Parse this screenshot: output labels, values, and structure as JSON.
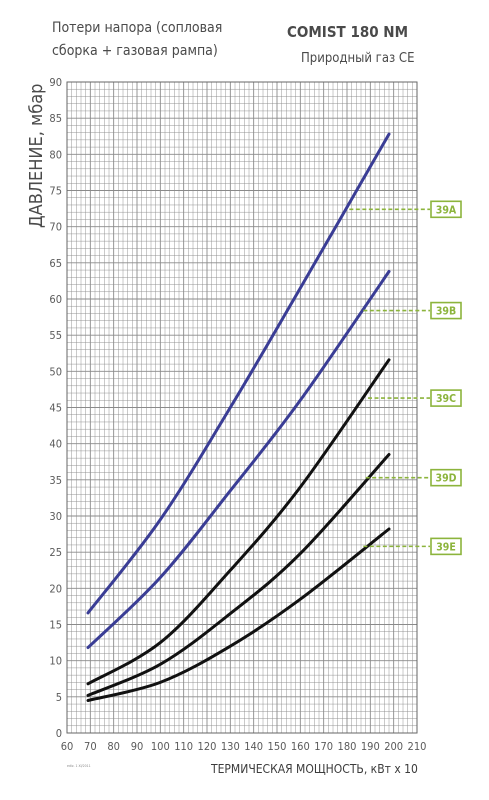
{
  "chart_data": {
    "type": "line",
    "title": "COMIST 180 NM",
    "subtitle": "Природный газ CE",
    "note": [
      "Потери напора (сопловая",
      "сборка + газовая рампа)"
    ],
    "xlabel": "ТЕРМИЧЕСКАЯ МОЩНОСТЬ, кВт х 10",
    "ylabel": "ДАВЛЕНИЕ, мбар",
    "xlim": [
      60,
      210
    ],
    "ylim": [
      0,
      90
    ],
    "xticks": [
      "60",
      "70",
      "80",
      "90",
      "100",
      "110",
      "120",
      "130",
      "140",
      "150",
      "160",
      "170",
      "180",
      "190",
      "200",
      "210"
    ],
    "yticks": [
      "0",
      "5",
      "10",
      "15",
      "20",
      "25",
      "30",
      "35",
      "40",
      "45",
      "50",
      "55",
      "60",
      "65",
      "70",
      "75",
      "80",
      "85",
      "90"
    ],
    "grid": true,
    "annotation": "ediz. 1 ХІ/2011",
    "colors": {
      "blue": "#3a3d95",
      "black": "#111111",
      "green": "#8cb43c",
      "grid": "#8a8a8a"
    },
    "series": [
      {
        "name": "39A",
        "color": "#3a3d95",
        "x": [
          69,
          100,
          130,
          160,
          198
        ],
        "y": [
          16.6,
          29.5,
          45.0,
          61.5,
          82.8
        ]
      },
      {
        "name": "39B",
        "color": "#3a3d95",
        "x": [
          69,
          100,
          130,
          160,
          198
        ],
        "y": [
          11.8,
          21.5,
          33.5,
          46.0,
          63.8
        ]
      },
      {
        "name": "39C",
        "color": "#111111",
        "x": [
          69,
          100,
          130,
          160,
          198
        ],
        "y": [
          6.8,
          12.5,
          22.5,
          34.0,
          51.6
        ]
      },
      {
        "name": "39D",
        "color": "#111111",
        "x": [
          69,
          100,
          130,
          160,
          198
        ],
        "y": [
          5.2,
          9.5,
          16.5,
          24.8,
          38.5
        ]
      },
      {
        "name": "39E",
        "color": "#111111",
        "x": [
          69,
          100,
          130,
          160,
          198
        ],
        "y": [
          4.5,
          7.0,
          12.0,
          18.5,
          28.2
        ]
      }
    ],
    "markers": [
      {
        "label": "39A",
        "from_x": 181,
        "y": 72.4
      },
      {
        "label": "39B",
        "from_x": 187,
        "y": 58.4
      },
      {
        "label": "39C",
        "from_x": 189,
        "y": 46.3
      },
      {
        "label": "39D",
        "from_x": 188,
        "y": 35.3
      },
      {
        "label": "39E",
        "from_x": 187,
        "y": 25.8
      }
    ]
  }
}
